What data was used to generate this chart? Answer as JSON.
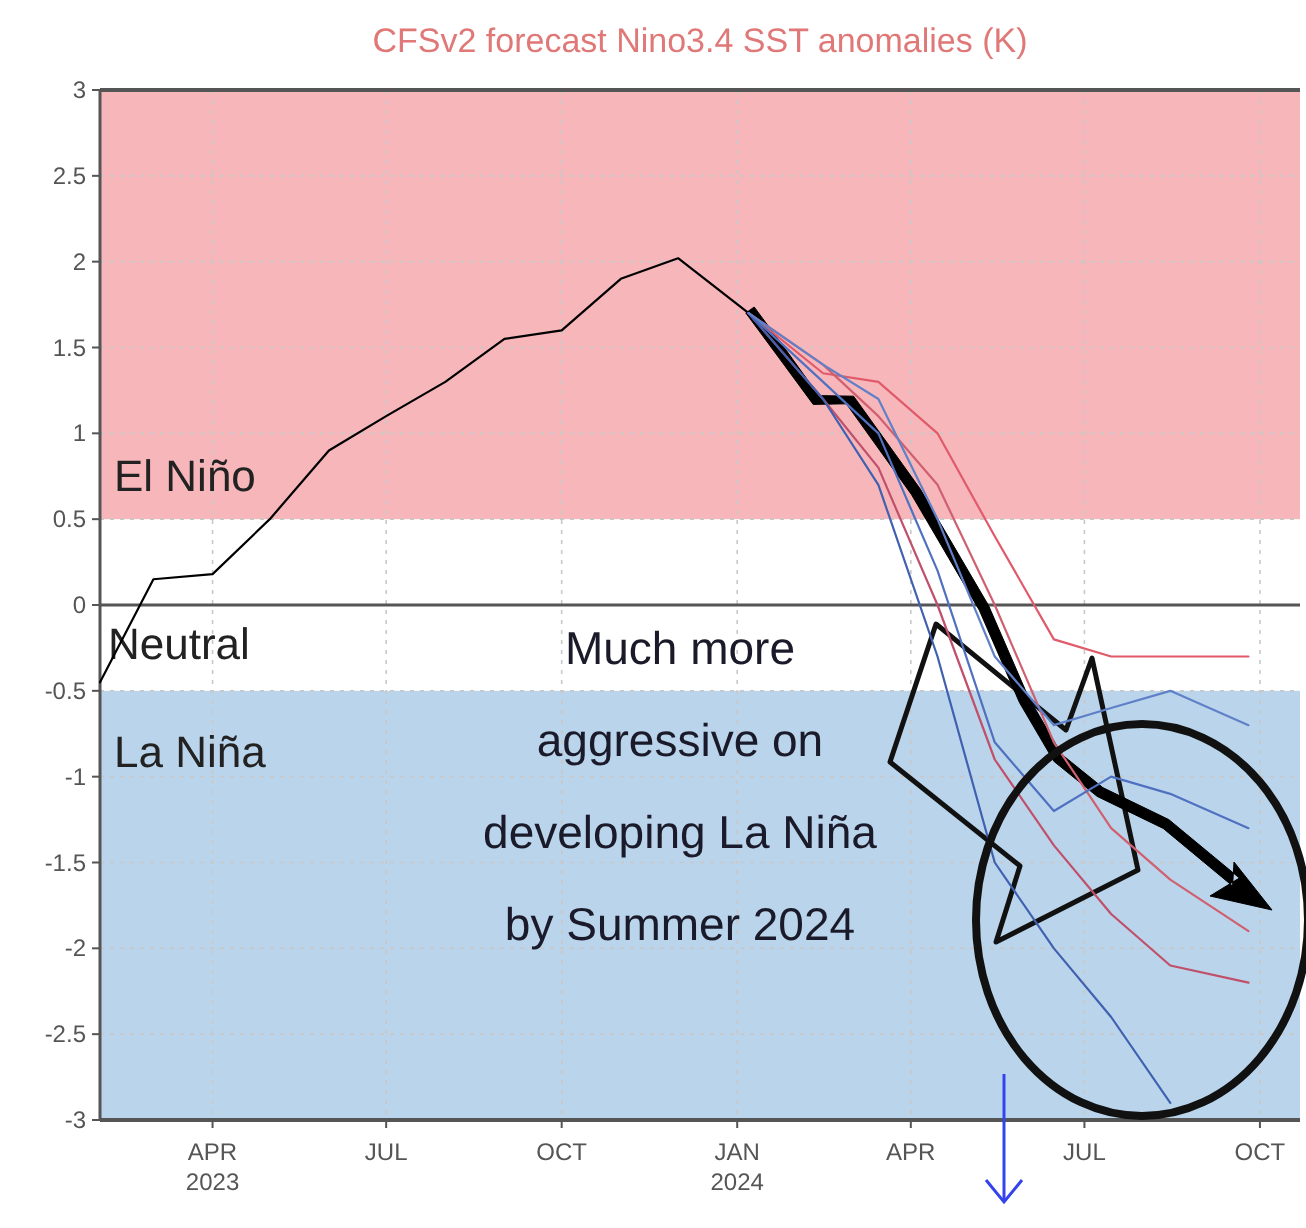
{
  "chart_data": {
    "type": "line",
    "title": "CFSv2 forecast Nino3.4 SST anomalies (K)",
    "xlim": [
      "2023-02-01",
      "2024-10-22"
    ],
    "xticks": [
      {
        "value": "2023-04-01",
        "label": "APR 2023"
      },
      {
        "value": "2023-07-01",
        "label": "JUL"
      },
      {
        "value": "2023-10-01",
        "label": "OCT"
      },
      {
        "value": "2024-01-01",
        "label": "JAN 2024"
      },
      {
        "value": "2024-04-01",
        "label": "APR"
      },
      {
        "value": "2024-07-01",
        "label": "JUL"
      },
      {
        "value": "2024-10-01",
        "label": "OCT"
      }
    ],
    "ylim": [
      -3,
      3
    ],
    "yticks": [
      -3,
      -2.5,
      -2,
      -1.5,
      -1,
      -0.5,
      0,
      0.5,
      1,
      1.5,
      2,
      2.5,
      3
    ],
    "grid": true,
    "bands": [
      {
        "axis": "y",
        "from": 0.5,
        "to": 3,
        "label": "El Niño",
        "color": "#f7b7ba"
      },
      {
        "axis": "y",
        "from": -3,
        "to": -0.5,
        "label": "La Niña",
        "color": "#bad5eb"
      }
    ],
    "ref_lines": [
      {
        "axis": "y",
        "value": 0,
        "label": "Neutral",
        "color": "#555555"
      }
    ],
    "annotations": [
      "Much more aggressive on developing La Niña by Summer 2024"
    ],
    "series": [
      {
        "color": "#000000",
        "x": [
          "2023-02-01",
          "2023-03-01",
          "2023-04-01",
          "2023-05-01",
          "2023-06-01",
          "2023-07-01",
          "2023-08-01",
          "2023-09-01",
          "2023-10-01",
          "2023-11-01",
          "2023-12-01",
          "2024-01-07"
        ],
        "values": [
          -0.45,
          0.15,
          0.18,
          0.5,
          0.9,
          1.1,
          1.3,
          1.55,
          1.6,
          1.9,
          2.02,
          1.7
        ]
      },
      {
        "color": "#e05a6a",
        "x": [
          "2024-01-07",
          "2024-02-15",
          "2024-03-15",
          "2024-04-15",
          "2024-05-15",
          "2024-06-15",
          "2024-07-15",
          "2024-08-15",
          "2024-09-25"
        ],
        "values": [
          1.7,
          1.35,
          1.3,
          1.0,
          0.4,
          -0.2,
          -0.3,
          -0.3,
          -0.3
        ]
      },
      {
        "color": "#c0506a",
        "x": [
          "2024-01-07",
          "2024-02-15",
          "2024-03-15",
          "2024-04-15",
          "2024-05-15",
          "2024-06-15",
          "2024-07-15",
          "2024-08-15",
          "2024-09-25"
        ],
        "values": [
          1.7,
          1.2,
          0.8,
          0.0,
          -0.9,
          -1.4,
          -1.8,
          -2.1,
          -2.2
        ]
      },
      {
        "color": "#d06070",
        "x": [
          "2024-01-07",
          "2024-02-15",
          "2024-03-15",
          "2024-04-15",
          "2024-05-15",
          "2024-06-15",
          "2024-07-15",
          "2024-08-15",
          "2024-09-25"
        ],
        "values": [
          1.7,
          1.4,
          1.1,
          0.7,
          0.0,
          -0.8,
          -1.3,
          -1.6,
          -1.9
        ]
      },
      {
        "color": "#5070c0",
        "x": [
          "2024-01-07",
          "2024-02-15",
          "2024-03-15",
          "2024-04-15",
          "2024-05-15",
          "2024-06-15",
          "2024-07-15",
          "2024-08-15",
          "2024-09-25"
        ],
        "values": [
          1.7,
          1.3,
          1.0,
          0.2,
          -0.8,
          -1.2,
          -1.0,
          -1.1,
          -1.3
        ]
      },
      {
        "color": "#4060b0",
        "x": [
          "2024-01-07",
          "2024-02-15",
          "2024-03-15",
          "2024-04-15",
          "2024-05-15",
          "2024-06-15",
          "2024-07-15",
          "2024-08-15"
        ],
        "values": [
          1.7,
          1.2,
          0.7,
          -0.3,
          -1.5,
          -2.0,
          -2.4,
          -2.9
        ]
      },
      {
        "color": "#6080c8",
        "x": [
          "2024-01-07",
          "2024-02-15",
          "2024-03-15",
          "2024-04-15",
          "2024-05-15",
          "2024-06-15",
          "2024-07-15",
          "2024-08-15",
          "2024-09-25"
        ],
        "values": [
          1.7,
          1.4,
          1.2,
          0.5,
          -0.3,
          -0.7,
          -0.6,
          -0.5,
          -0.7
        ]
      }
    ]
  }
}
